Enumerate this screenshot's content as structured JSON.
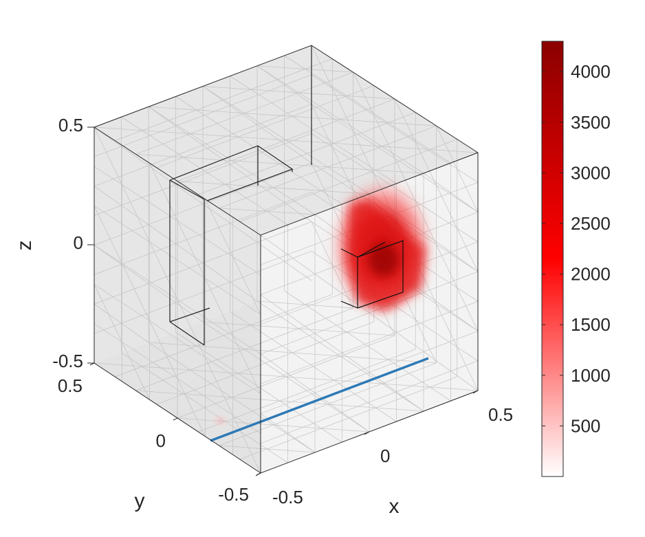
{
  "chart_data": {
    "type": "heatmap",
    "view": "3d-volume",
    "xlabel": "x",
    "ylabel": "y",
    "zlabel": "z",
    "xlim": [
      -0.5,
      0.5
    ],
    "ylim": [
      -0.5,
      0.5
    ],
    "zlim": [
      -0.5,
      0.5
    ],
    "x_ticks": [
      "-0.5",
      "0",
      "0.5"
    ],
    "y_ticks": [
      "-0.5",
      "0",
      "0.5"
    ],
    "z_ticks": [
      "-0.5",
      "0",
      "0.5"
    ],
    "colorbar": {
      "min": 0,
      "max": 4300,
      "ticks": [
        "500",
        "1000",
        "1500",
        "2000",
        "2500",
        "3000",
        "3500",
        "4000"
      ],
      "colors": [
        "#ffffff",
        "#ff0000",
        "#8b0000"
      ]
    },
    "source_line_color": "#2e7ab6",
    "mesh_grid": true
  }
}
